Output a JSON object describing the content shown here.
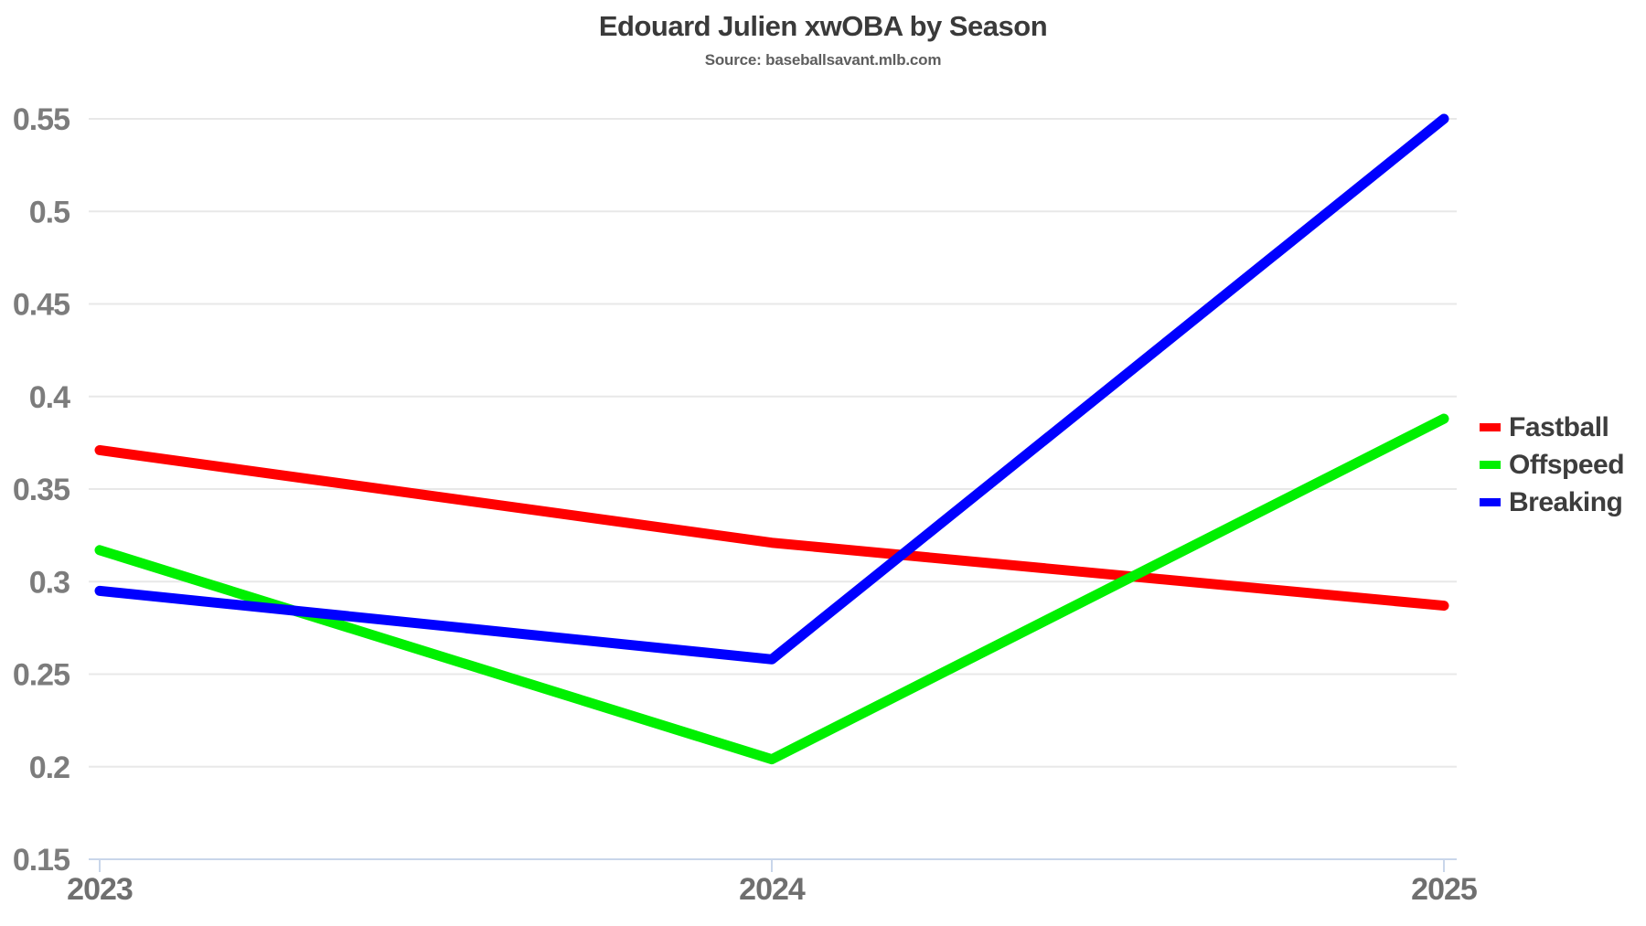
{
  "header": {
    "title": "Edouard Julien xwOBA by Season",
    "subtitle": "Source: baseballsavant.mlb.com"
  },
  "chart_data": {
    "type": "line",
    "title": "Edouard Julien xwOBA by Season",
    "subtitle": "Source: baseballsavant.mlb.com",
    "x": [
      2023,
      2024,
      2025
    ],
    "x_tick_labels": [
      "2023",
      "2024",
      "2025"
    ],
    "xlabel": "",
    "ylabel": "",
    "ylim": [
      0.15,
      0.55
    ],
    "y_tick_step": 0.05,
    "y_tick_labels": [
      "0.15",
      "0.2",
      "0.25",
      "0.3",
      "0.35",
      "0.4",
      "0.45",
      "0.5",
      "0.55"
    ],
    "grid": true,
    "legend_position": "right",
    "series": [
      {
        "name": "Fastball",
        "color": "#ff0000",
        "values": [
          0.371,
          0.321,
          0.287
        ]
      },
      {
        "name": "Offspeed",
        "color": "#00f000",
        "values": [
          0.317,
          0.204,
          0.388
        ]
      },
      {
        "name": "Breaking",
        "color": "#0000ff",
        "values": [
          0.295,
          0.258,
          0.55
        ]
      }
    ],
    "colors": {
      "grid": "#e8e8e8",
      "axis": "#c9d6ea",
      "y_tick_text": "#7c7c7c",
      "x_tick_text": "#6f6f6f",
      "title_text": "#3a3a3a",
      "subtitle_text": "#5e5e5e",
      "legend_text": "#3d3d3d"
    }
  }
}
